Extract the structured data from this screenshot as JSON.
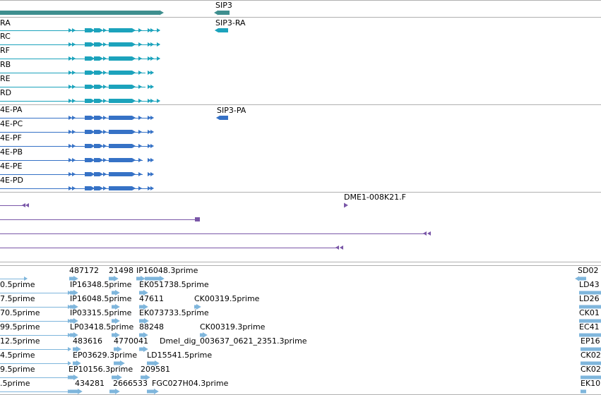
{
  "colors": {
    "gene_bar": "#3f8f8f",
    "mrna_teal": "#1ca3bc",
    "protein_blue": "#3672c6",
    "clone_purple": "#7a57a8",
    "est_blue": "#7fb6dc",
    "track_border": "#b0b0b0"
  },
  "gene_track": {
    "gene_label": "SIP3"
  },
  "mrna_track": {
    "left_labels": [
      "RA",
      "RC",
      "RF",
      "RB",
      "RE",
      "RD"
    ],
    "right_label": "SIP3-RA"
  },
  "protein_track": {
    "left_labels": [
      "4E-PA",
      "4E-PC",
      "4E-PF",
      "4E-PB",
      "4E-PE",
      "4E-PD"
    ],
    "right_label": "SIP3-PA"
  },
  "clone_track": {
    "label": "DME1-008K21.F"
  },
  "est_track": {
    "rows": [
      [
        "",
        "487172",
        "21498",
        "IP16048.3prime",
        "",
        "SD02"
      ],
      [
        "0.5prime",
        "IP16348.5prime",
        "EK051738.5prime",
        "",
        "",
        "LD43"
      ],
      [
        "7.5prime",
        "IP16048.5prime",
        "47611",
        "CK00319.5prime",
        "",
        "LD26"
      ],
      [
        "70.5prime",
        "IP03315.5prime",
        "EK073733.5prime",
        "",
        "",
        "CK01"
      ],
      [
        "99.5prime",
        "LP03418.5prime",
        "88248",
        "CK00319.3prime",
        "",
        "EC41"
      ],
      [
        "12.5prime",
        "483616",
        "4770041",
        "Dmel_dig_003637_0621_2351.3prime",
        "",
        "EP16"
      ],
      [
        "4.5prime",
        "EP03629.3prime",
        "LD15541.5prime",
        "",
        "",
        "CK02"
      ],
      [
        "9.5prime",
        "EP10156.3prime",
        "209581",
        "",
        "",
        "CK02"
      ],
      [
        ".5prime",
        "434281",
        "2666533",
        "FGC027H04.3prime",
        "",
        "EK10"
      ]
    ]
  }
}
